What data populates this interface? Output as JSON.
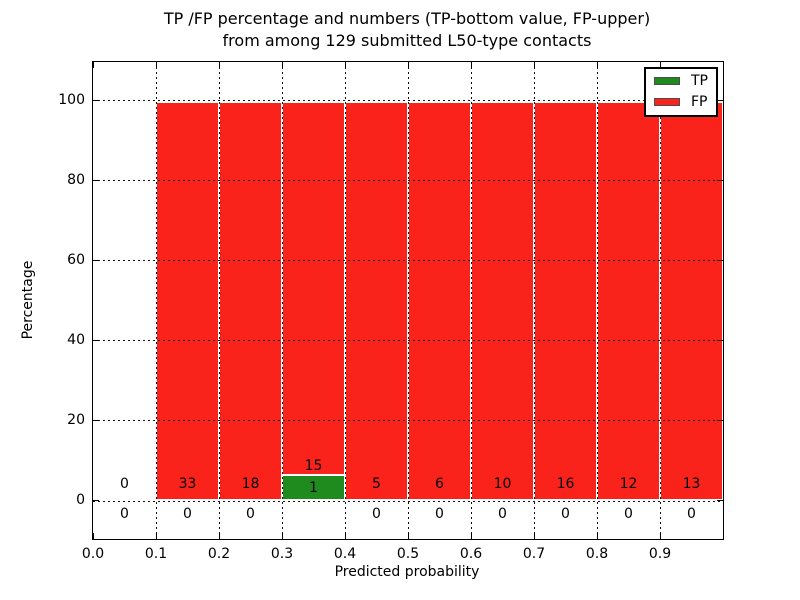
{
  "title": {
    "line1": "TP /FP percentage and numbers (TP-bottom value, FP-upper)",
    "line2": "from among 129 submitted L50-type contacts"
  },
  "axes": {
    "ylabel": "Percentage",
    "xlabel": "Predicted probability",
    "ytick_labels": [
      "0",
      "20",
      "40",
      "60",
      "80",
      "100"
    ],
    "ytick_values": [
      0,
      20,
      40,
      60,
      80,
      100
    ],
    "xtick_labels": [
      "0.0",
      "0.1",
      "0.2",
      "0.3",
      "0.4",
      "0.5",
      "0.6",
      "0.7",
      "0.8",
      "0.9"
    ],
    "xtick_values": [
      0.0,
      0.1,
      0.2,
      0.3,
      0.4,
      0.5,
      0.6,
      0.7,
      0.8,
      0.9
    ]
  },
  "legend": {
    "items": [
      {
        "label": "TP",
        "color": "#1f8b1f"
      },
      {
        "label": "FP",
        "color": "#f9231b"
      }
    ]
  },
  "colors": {
    "tp_green": "#1f8b1f",
    "fp_red": "#f9231b",
    "bar_edge": "#ffffff",
    "grid": "#111111"
  },
  "chart_data": {
    "type": "bar",
    "stacked": true,
    "title": "TP /FP percentage and numbers (TP-bottom value, FP-upper) from among 129 submitted L50-type contacts",
    "xlabel": "Predicted probability",
    "ylabel": "Percentage",
    "xlim": [
      0.0,
      1.0
    ],
    "ylim": [
      -10,
      109
    ],
    "grid": "dotted",
    "legend_position": "upper right",
    "total_contacts": 129,
    "bin_edges": [
      0.0,
      0.1,
      0.2,
      0.3,
      0.4,
      0.5,
      0.6,
      0.7,
      0.8,
      0.9,
      1.0
    ],
    "series": [
      {
        "name": "TP",
        "color": "#1f8b1f",
        "counts": [
          0,
          0,
          0,
          1,
          0,
          0,
          0,
          0,
          0,
          0
        ],
        "percentages": [
          0,
          0,
          0,
          6.25,
          0,
          0,
          0,
          0,
          0,
          0
        ]
      },
      {
        "name": "FP",
        "color": "#f9231b",
        "counts": [
          0,
          33,
          18,
          15,
          5,
          6,
          10,
          16,
          12,
          13
        ],
        "percentages": [
          0,
          100,
          100,
          93.75,
          100,
          100,
          100,
          100,
          100,
          100
        ]
      }
    ]
  }
}
